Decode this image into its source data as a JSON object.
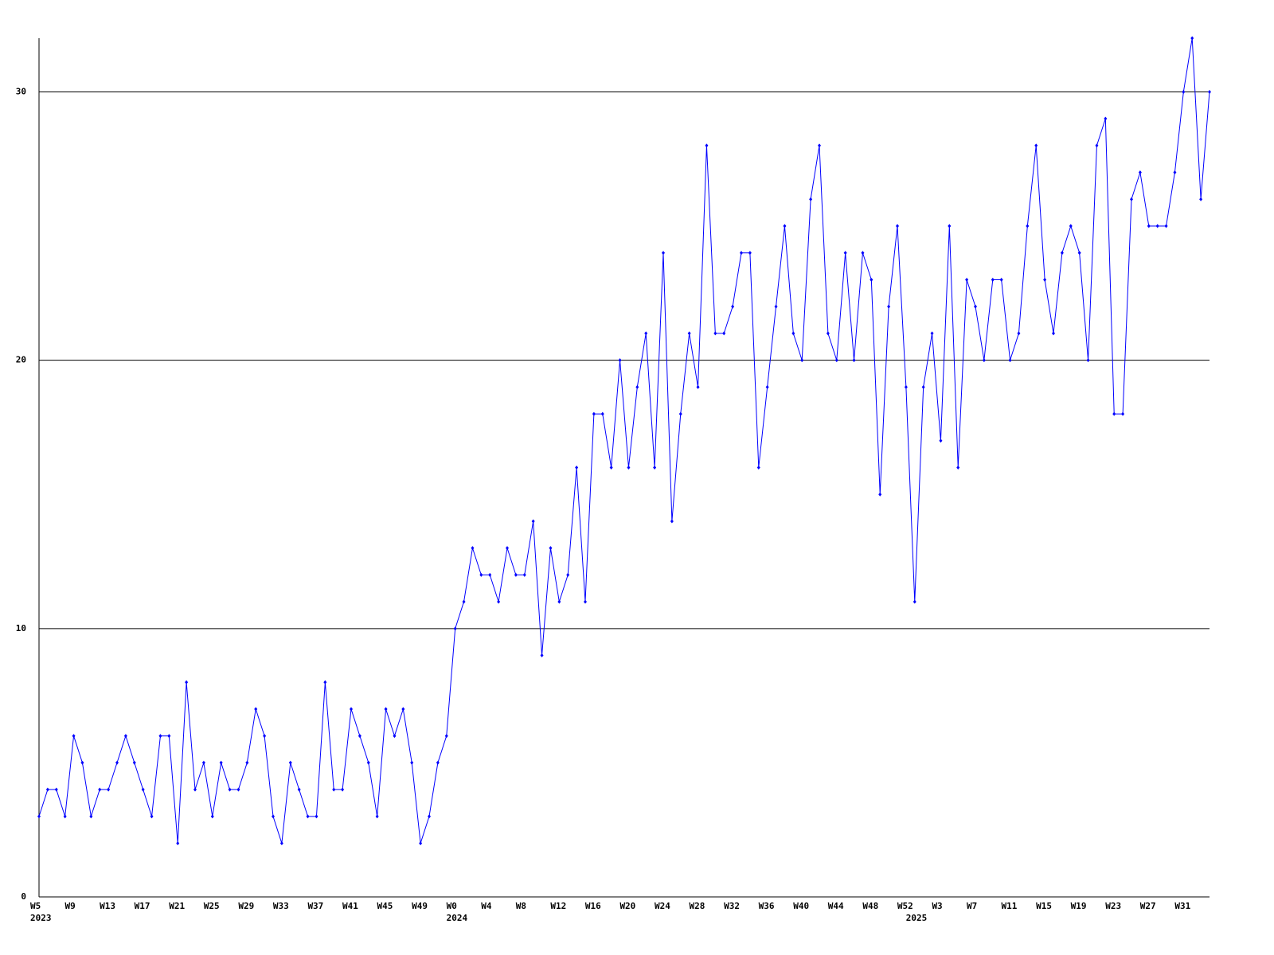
{
  "chart_data": {
    "type": "line",
    "categories": [
      "W5",
      null,
      null,
      null,
      "W9",
      null,
      null,
      null,
      "W13",
      null,
      null,
      null,
      "W17",
      null,
      null,
      null,
      "W21",
      null,
      null,
      null,
      "W25",
      null,
      null,
      null,
      "W29",
      null,
      null,
      null,
      "W33",
      null,
      null,
      null,
      "W37",
      null,
      null,
      null,
      "W41",
      null,
      null,
      null,
      "W45",
      null,
      null,
      null,
      "W49",
      null,
      null,
      null,
      "W0",
      null,
      null,
      null,
      "W4",
      null,
      null,
      null,
      "W8",
      null,
      null,
      null,
      "W12",
      null,
      null,
      null,
      "W16",
      null,
      null,
      null,
      "W20",
      null,
      null,
      null,
      "W24",
      null,
      null,
      null,
      "W28",
      null,
      null,
      null,
      "W32",
      null,
      null,
      null,
      "W36",
      null,
      null,
      null,
      "W40",
      null,
      null,
      null,
      "W44",
      null,
      null,
      null,
      "W48",
      null,
      null,
      null,
      "W52",
      null,
      null,
      null,
      "W3",
      null,
      null,
      null,
      "W7",
      null,
      null,
      null,
      "W11",
      null,
      null,
      null,
      "W15",
      null,
      null,
      null,
      "W19",
      null,
      null,
      null,
      "W23",
      null,
      null,
      null,
      "W27",
      null,
      null,
      null,
      "W31",
      null,
      null,
      null
    ],
    "year_labels": [
      "2023",
      null,
      null,
      null,
      null,
      null,
      null,
      null,
      null,
      null,
      null,
      null,
      null,
      null,
      null,
      null,
      null,
      null,
      null,
      null,
      null,
      null,
      null,
      null,
      null,
      null,
      null,
      null,
      null,
      null,
      null,
      null,
      null,
      null,
      null,
      null,
      null,
      null,
      null,
      null,
      null,
      null,
      null,
      null,
      null,
      null,
      null,
      null,
      "2024",
      null,
      null,
      null,
      null,
      null,
      null,
      null,
      null,
      null,
      null,
      null,
      null,
      null,
      null,
      null,
      null,
      null,
      null,
      null,
      null,
      null,
      null,
      null,
      null,
      null,
      null,
      null,
      null,
      null,
      null,
      null,
      null,
      null,
      null,
      null,
      null,
      null,
      null,
      null,
      null,
      null,
      null,
      null,
      null,
      null,
      null,
      null,
      null,
      null,
      null,
      null,
      null,
      "2025",
      null,
      null,
      null,
      null,
      null,
      null,
      null,
      null,
      null,
      null,
      null,
      null,
      null,
      null,
      null,
      null,
      null,
      null,
      null,
      null,
      null,
      null,
      null,
      null,
      null,
      null,
      null,
      null,
      null,
      null,
      null,
      null,
      null,
      null
    ],
    "series": [
      {
        "color": "#0000ff",
        "values": [
          3,
          4,
          4,
          3,
          6,
          5,
          3,
          4,
          4,
          5,
          6,
          5,
          4,
          3,
          6,
          6,
          2,
          8,
          4,
          5,
          3,
          5,
          4,
          4,
          5,
          7,
          6,
          3,
          2,
          5,
          4,
          3,
          3,
          8,
          4,
          4,
          7,
          6,
          5,
          3,
          7,
          6,
          7,
          5,
          2,
          3,
          5,
          6,
          10,
          11,
          13,
          12,
          12,
          11,
          13,
          12,
          12,
          14,
          9,
          13,
          11,
          12,
          16,
          11,
          18,
          18,
          16,
          20,
          16,
          19,
          21,
          16,
          24,
          14,
          18,
          21,
          19,
          28,
          21,
          21,
          22,
          24,
          24,
          16,
          19,
          22,
          25,
          21,
          20,
          26,
          28,
          21,
          20,
          24,
          20,
          24,
          23,
          15,
          22,
          25,
          19,
          11,
          19,
          21,
          17,
          25,
          16,
          23,
          22,
          20,
          23,
          23,
          20,
          21,
          25,
          28,
          23,
          21,
          24,
          25,
          24,
          20,
          28,
          29,
          18,
          18,
          26,
          27,
          25,
          25,
          25,
          27,
          30,
          32,
          26,
          30
        ]
      }
    ],
    "ylim": [
      0,
      32
    ],
    "yticks": [
      0,
      10,
      20,
      30
    ],
    "grid": true
  }
}
